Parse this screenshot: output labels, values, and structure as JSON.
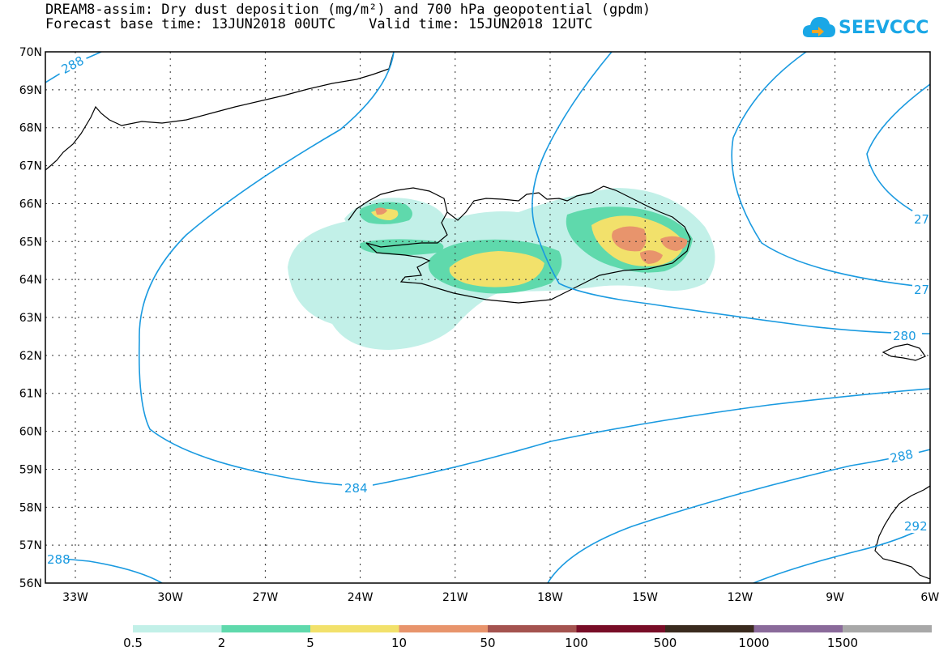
{
  "title": {
    "line1": "DREAM8-assim: Dry dust deposition (mg/m²) and 700 hPa geopotential (gpdm)",
    "line2": "Forecast base time: 13JUN2018 00UTC    Valid time: 15JUN2018 12UTC"
  },
  "logo": {
    "text": "SEEVCCC",
    "icon": "cloud-icon"
  },
  "map": {
    "lat_labels": [
      "70N",
      "69N",
      "68N",
      "67N",
      "66N",
      "65N",
      "64N",
      "63N",
      "62N",
      "61N",
      "60N",
      "59N",
      "58N",
      "57N",
      "56N"
    ],
    "lon_labels": [
      "33W",
      "30W",
      "27W",
      "24W",
      "21W",
      "18W",
      "15W",
      "12W",
      "9W",
      "6W"
    ],
    "contour_labels": [
      "288",
      "284",
      "280",
      "288",
      "288",
      "292",
      "27",
      "27"
    ]
  },
  "legend": {
    "labels": [
      "0.5",
      "2",
      "5",
      "10",
      "50",
      "100",
      "500",
      "1000",
      "1500"
    ],
    "colors": [
      "#c2f0e8",
      "#5fd9ac",
      "#f2e16b",
      "#e8946c",
      "#a4534f",
      "#780d27",
      "#3a2a1e",
      "#8a6a9a",
      "#a8a8a8"
    ]
  },
  "colors": {
    "contour": "#1a9ae0",
    "coast": "#000000"
  }
}
